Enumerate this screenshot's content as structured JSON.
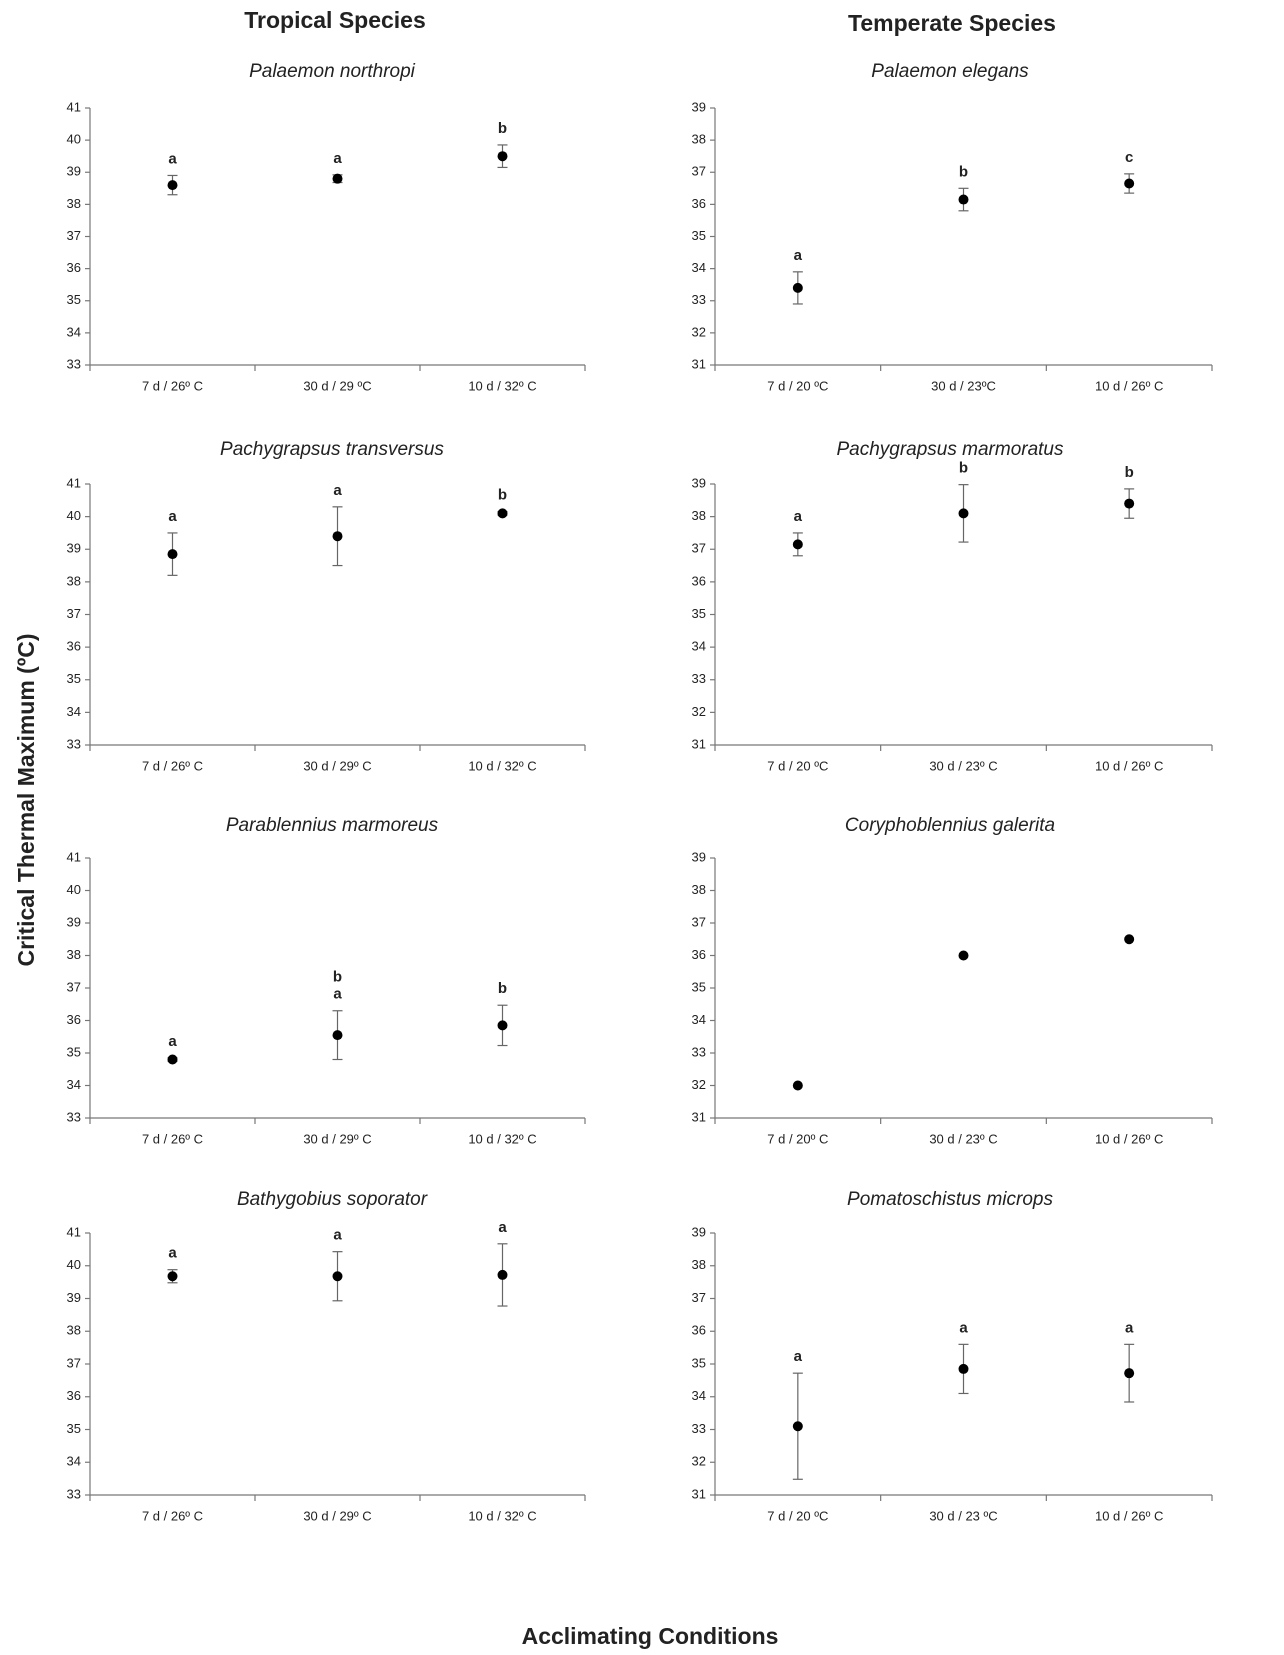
{
  "column_titles": [
    "Tropical Species",
    "Temperate Species"
  ],
  "y_label": "Critical Thermal Maximum (ºC)",
  "x_label": "Acclimating Conditions",
  "chart_data": [
    {
      "type": "point",
      "title": "Palaemon northropi",
      "categories": [
        "7 d / 26º C",
        "30 d / 29 ºC",
        "10 d / 32º C"
      ],
      "values": [
        38.6,
        38.8,
        39.5
      ],
      "errors": [
        0.3,
        0.12,
        0.35
      ],
      "letters": [
        [
          "a"
        ],
        [
          "a"
        ],
        [
          "b"
        ]
      ],
      "ylim": [
        33,
        41
      ],
      "yticks": [
        33,
        34,
        35,
        36,
        37,
        38,
        39,
        40,
        41
      ],
      "color": "#000000"
    },
    {
      "type": "point",
      "title": "Palaemon elegans",
      "categories": [
        "7 d / 20 ºC",
        "30 d / 23ºC",
        "10 d / 26º C"
      ],
      "values": [
        33.4,
        36.15,
        36.65
      ],
      "errors": [
        0.5,
        0.35,
        0.3
      ],
      "letters": [
        [
          "a"
        ],
        [
          "b"
        ],
        [
          "c"
        ]
      ],
      "ylim": [
        31,
        39
      ],
      "yticks": [
        31,
        32,
        33,
        34,
        35,
        36,
        37,
        38,
        39
      ],
      "color": "#000000"
    },
    {
      "type": "point",
      "title": "Pachygrapsus transversus",
      "categories": [
        "7 d / 26º C",
        "30 d / 29º C",
        "10 d / 32º C"
      ],
      "values": [
        38.85,
        39.4,
        40.1
      ],
      "errors": [
        0.65,
        0.9,
        0.05
      ],
      "letters": [
        [
          "a"
        ],
        [
          "a"
        ],
        [
          "b"
        ]
      ],
      "ylim": [
        33,
        41
      ],
      "yticks": [
        33,
        34,
        35,
        36,
        37,
        38,
        39,
        40,
        41
      ],
      "color": "#000000"
    },
    {
      "type": "point",
      "title": "Pachygrapsus marmoratus",
      "categories": [
        "7 d / 20 ºC",
        "30 d / 23º C",
        "10 d / 26º C"
      ],
      "values": [
        37.15,
        38.1,
        38.4
      ],
      "errors": [
        0.35,
        0.88,
        0.45
      ],
      "letters": [
        [
          "a"
        ],
        [
          "b"
        ],
        [
          "b"
        ]
      ],
      "ylim": [
        31,
        39
      ],
      "yticks": [
        31,
        32,
        33,
        34,
        35,
        36,
        37,
        38,
        39
      ],
      "color": "#000000"
    },
    {
      "type": "point",
      "title": "Parablennius marmoreus",
      "categories": [
        "7 d / 26º C",
        "30 d / 29º C",
        "10 d / 32º C"
      ],
      "values": [
        34.8,
        35.55,
        35.85
      ],
      "errors": [
        0.05,
        0.75,
        0.62
      ],
      "letters": [
        [
          "a"
        ],
        [
          "b",
          "a"
        ],
        [
          "b"
        ]
      ],
      "ylim": [
        33,
        41
      ],
      "yticks": [
        33,
        34,
        35,
        36,
        37,
        38,
        39,
        40,
        41
      ],
      "color": "#000000"
    },
    {
      "type": "point",
      "title": "Coryphoblennius galerita",
      "categories": [
        "7 d / 20º C",
        "30 d / 23º C",
        "10 d / 26º C"
      ],
      "values": [
        32,
        36,
        36.5
      ],
      "ylim": [
        31,
        39
      ],
      "yticks": [
        31,
        32,
        33,
        34,
        35,
        36,
        37,
        38,
        39
      ],
      "color": "#000000"
    },
    {
      "type": "point",
      "title": "Bathygobius soporator",
      "categories": [
        "7 d / 26º C",
        "30 d / 29º C",
        "10 d / 32º C"
      ],
      "values": [
        39.68,
        39.68,
        39.72
      ],
      "errors": [
        0.2,
        0.75,
        0.95
      ],
      "letters": [
        [
          "a"
        ],
        [
          "a"
        ],
        [
          "a"
        ]
      ],
      "ylim": [
        33,
        41
      ],
      "yticks": [
        33,
        34,
        35,
        36,
        37,
        38,
        39,
        40,
        41
      ],
      "color": "#000000"
    },
    {
      "type": "point",
      "title": "Pomatoschistus microps",
      "categories": [
        "7 d / 20 ºC",
        "30 d / 23 ºC",
        "10 d / 26º C"
      ],
      "values": [
        33.1,
        34.85,
        34.72
      ],
      "errors": [
        1.62,
        0.75,
        0.88
      ],
      "letters": [
        [
          "a"
        ],
        [
          "a"
        ],
        [
          "a"
        ]
      ],
      "ylim": [
        31,
        39
      ],
      "yticks": [
        31,
        32,
        33,
        34,
        35,
        36,
        37,
        38,
        39
      ],
      "color": "#000000"
    }
  ]
}
